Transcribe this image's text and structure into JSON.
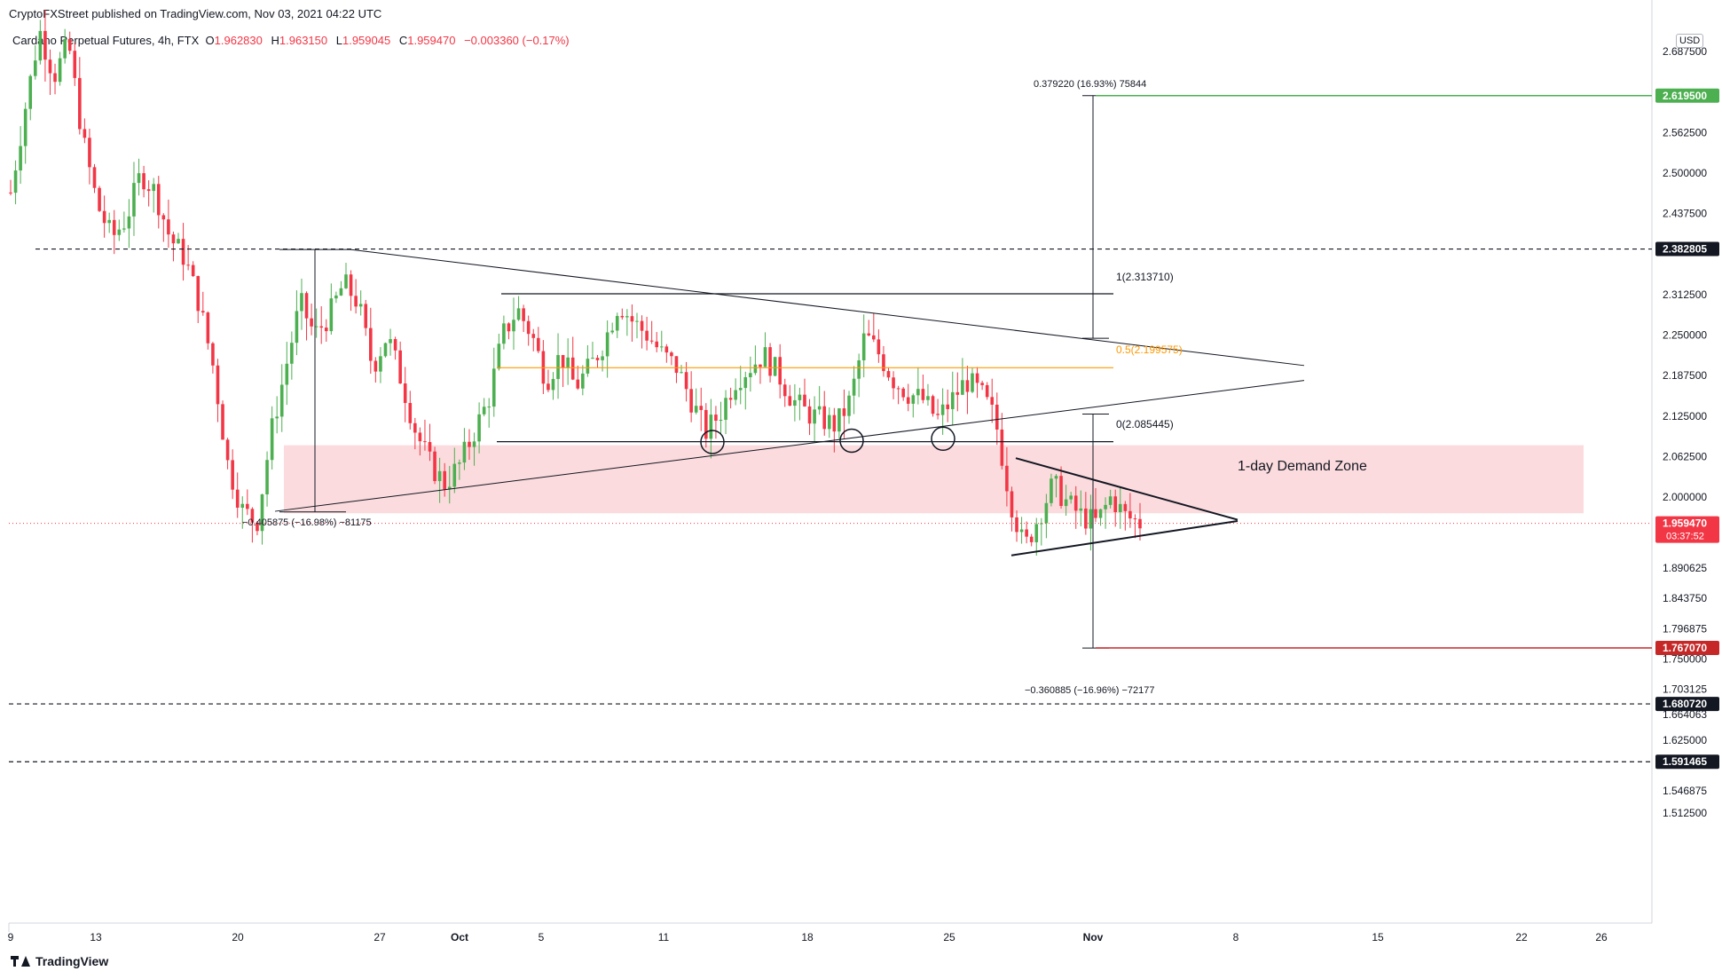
{
  "header": {
    "published": "CryptoFXStreet published on TradingView.com, Nov 03, 2021 04:22 UTC"
  },
  "symbol": {
    "name": "Cardano Perpetual Futures, 4h, FTX",
    "open_label": "O",
    "open": "1.962830",
    "high_label": "H",
    "high": "1.963150",
    "low_label": "L",
    "low": "1.959045",
    "close_label": "C",
    "close": "1.959470",
    "change": "−0.003360 (−0.17%)"
  },
  "currency": "USD",
  "footer": {
    "brand": "TradingView",
    "logo": "tradingview-logo-icon"
  },
  "colors": {
    "up": "#26a69a",
    "up_green": "#4caf50",
    "down": "#f23645",
    "demand_zone": "#f9c8cb",
    "fib_half": "#ff9800",
    "target_up": "#4caf50",
    "target_down": "#c62828"
  },
  "chart_data": {
    "type": "candlestick",
    "ylim": [
      1.44,
      2.79
    ],
    "x_ticks": [
      "9",
      "13",
      "20",
      "27",
      "Oct",
      "5",
      "11",
      "18",
      "25",
      "Nov",
      "8",
      "15",
      "22",
      "26"
    ],
    "y_ticks": [
      "2.687500",
      "2.562500",
      "2.500000",
      "2.437500",
      "2.312500",
      "2.250000",
      "2.187500",
      "2.125000",
      "2.062500",
      "2.000000",
      "1.890625",
      "1.843750",
      "1.796875",
      "1.750000",
      "1.703125",
      "1.664063",
      "1.625000",
      "1.546875",
      "1.512500"
    ],
    "price_badges": [
      {
        "value": 2.6195,
        "label": "2.619500",
        "style": "green"
      },
      {
        "value": 2.382805,
        "label": "2.382805",
        "style": "black"
      },
      {
        "value": 1.95947,
        "label": "1.959470",
        "sub": "03:37:52",
        "style": "red"
      },
      {
        "value": 1.76707,
        "label": "1.767070",
        "style": "darkred"
      },
      {
        "value": 1.68072,
        "label": "1.680720",
        "style": "black"
      },
      {
        "value": 1.591465,
        "label": "1.591465",
        "style": "black"
      }
    ],
    "annotations": {
      "upper_measure": "0.379220 (16.93%) 75844",
      "lower_measure": "−0.360885 (−16.96%) −72177",
      "left_measure": "−0.405875 (−16.98%) −81175",
      "fib_1": "1(2.313710)",
      "fib_half": "0.5(2.199575)",
      "fib_0": "0(2.085445)",
      "demand_zone": "1-day Demand Zone"
    },
    "levels": {
      "fib_1": 2.31371,
      "fib_half": 2.199575,
      "fib_0": 2.085445,
      "demand_top": 2.08,
      "demand_bottom": 1.975,
      "target_up": 2.6195,
      "target_down": 1.76707,
      "dashed_upper": 2.382805,
      "dashed_low1": 1.68072,
      "dashed_low2": 1.591465,
      "current": 1.95947
    },
    "price_path": [
      [
        0,
        2.47
      ],
      [
        1,
        2.6
      ],
      [
        2,
        2.72
      ],
      [
        3,
        2.65
      ],
      [
        4,
        2.7
      ],
      [
        5,
        2.55
      ],
      [
        6,
        2.45
      ],
      [
        7,
        2.4
      ],
      [
        8,
        2.43
      ],
      [
        9,
        2.5
      ],
      [
        10,
        2.47
      ],
      [
        11,
        2.4
      ],
      [
        12,
        2.37
      ],
      [
        13,
        2.3
      ],
      [
        14,
        2.2
      ],
      [
        15,
        2.05
      ],
      [
        16,
        1.98
      ],
      [
        17,
        1.96
      ],
      [
        18,
        2.1
      ],
      [
        19,
        2.2
      ],
      [
        20,
        2.3
      ],
      [
        21,
        2.25
      ],
      [
        22,
        2.28
      ],
      [
        23,
        2.33
      ],
      [
        24,
        2.3
      ],
      [
        25,
        2.2
      ],
      [
        26,
        2.25
      ],
      [
        27,
        2.18
      ],
      [
        28,
        2.1
      ],
      [
        29,
        2.05
      ],
      [
        30,
        2.02
      ],
      [
        31,
        2.05
      ],
      [
        32,
        2.1
      ],
      [
        33,
        2.15
      ],
      [
        34,
        2.25
      ],
      [
        35,
        2.29
      ],
      [
        36,
        2.25
      ],
      [
        37,
        2.18
      ],
      [
        38,
        2.22
      ],
      [
        39,
        2.17
      ],
      [
        40,
        2.2
      ],
      [
        41,
        2.24
      ],
      [
        42,
        2.3
      ],
      [
        43,
        2.27
      ],
      [
        44,
        2.25
      ],
      [
        45,
        2.22
      ],
      [
        46,
        2.2
      ],
      [
        47,
        2.15
      ],
      [
        48,
        2.1
      ],
      [
        49,
        2.13
      ],
      [
        50,
        2.18
      ],
      [
        51,
        2.2
      ],
      [
        52,
        2.22
      ],
      [
        53,
        2.19
      ],
      [
        54,
        2.15
      ],
      [
        55,
        2.13
      ],
      [
        56,
        2.12
      ],
      [
        57,
        2.11
      ],
      [
        58,
        2.15
      ],
      [
        59,
        2.25
      ],
      [
        60,
        2.22
      ],
      [
        61,
        2.18
      ],
      [
        62,
        2.16
      ],
      [
        63,
        2.15
      ],
      [
        64,
        2.12
      ],
      [
        65,
        2.15
      ],
      [
        66,
        2.18
      ],
      [
        67,
        2.16
      ],
      [
        68,
        2.12
      ],
      [
        69,
        2.0
      ],
      [
        70,
        1.92
      ],
      [
        71,
        1.97
      ],
      [
        72,
        2.02
      ],
      [
        73,
        1.99
      ],
      [
        74,
        1.97
      ],
      [
        75,
        1.96
      ],
      [
        76,
        2.0
      ],
      [
        77,
        1.97
      ],
      [
        78,
        1.96
      ]
    ]
  }
}
